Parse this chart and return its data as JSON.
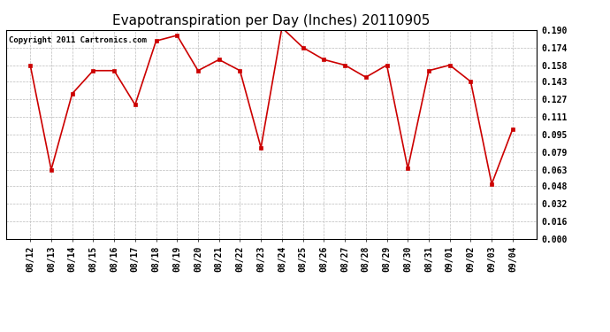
{
  "title": "Evapotranspiration per Day (Inches) 20110905",
  "copyright": "Copyright 2011 Cartronics.com",
  "dates": [
    "08/12",
    "08/13",
    "08/14",
    "08/15",
    "08/16",
    "08/17",
    "08/18",
    "08/19",
    "08/20",
    "08/21",
    "08/22",
    "08/23",
    "08/24",
    "08/25",
    "08/26",
    "08/27",
    "08/28",
    "08/29",
    "08/30",
    "08/31",
    "09/01",
    "09/02",
    "09/03",
    "09/04"
  ],
  "values": [
    0.158,
    0.063,
    0.132,
    0.153,
    0.153,
    0.122,
    0.18,
    0.185,
    0.153,
    0.163,
    0.153,
    0.083,
    0.192,
    0.174,
    0.163,
    0.158,
    0.147,
    0.158,
    0.064,
    0.153,
    0.158,
    0.143,
    0.05,
    0.1
  ],
  "line_color": "#cc0000",
  "marker": "s",
  "marker_size": 2.5,
  "ylim": [
    0.0,
    0.19
  ],
  "yticks": [
    0.0,
    0.016,
    0.032,
    0.048,
    0.063,
    0.079,
    0.095,
    0.111,
    0.127,
    0.143,
    0.158,
    0.174,
    0.19
  ],
  "background_color": "#ffffff",
  "grid_color": "#bbbbbb",
  "title_fontsize": 11,
  "copyright_fontsize": 6.5,
  "tick_fontsize": 7
}
